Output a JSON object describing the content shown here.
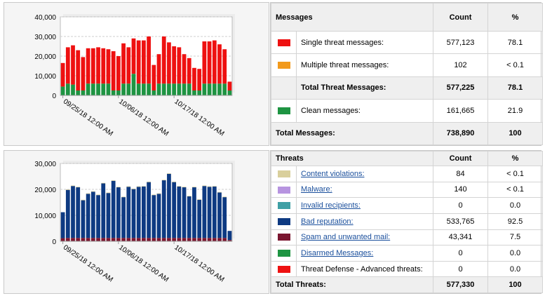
{
  "messages_table": {
    "col_label": "Messages",
    "col_count": "Count",
    "col_pct": "%",
    "rows": [
      {
        "label": "Single threat messages:",
        "count": "577,123",
        "pct": "78.1",
        "color": "#ee1111"
      },
      {
        "label": "Multiple threat messages:",
        "count": "102",
        "pct": "< 0.1",
        "color": "#f29a1c"
      }
    ],
    "total_threat": {
      "label": "Total Threat Messages:",
      "count": "577,225",
      "pct": "78.1"
    },
    "clean": {
      "label": "Clean messages:",
      "count": "161,665",
      "pct": "21.9",
      "color": "#1e9442"
    },
    "total": {
      "label": "Total Messages:",
      "count": "738,890",
      "pct": "100"
    }
  },
  "threats_table": {
    "col_label": "Threats",
    "col_count": "Count",
    "col_pct": "%",
    "rows": [
      {
        "label": "Content violations:",
        "count": "84",
        "pct": "< 0.1",
        "color": "#d9cf9c",
        "link": true
      },
      {
        "label": "Malware:",
        "count": "140",
        "pct": "< 0.1",
        "color": "#b794e0",
        "link": true
      },
      {
        "label": "Invalid recipients:",
        "count": "0",
        "pct": "0.0",
        "color": "#3fa0a5",
        "link": true
      },
      {
        "label": "Bad reputation:",
        "count": "533,765",
        "pct": "92.5",
        "color": "#0e3a82",
        "link": true
      },
      {
        "label": "Spam and unwanted mail:",
        "count": "43,341",
        "pct": "7.5",
        "color": "#7a1630",
        "link": true
      },
      {
        "label": "Disarmed Messages:",
        "count": "0",
        "pct": "0.0",
        "color": "#1e9442",
        "link": true
      },
      {
        "label": "Threat Defense - Advanced threats:",
        "count": "0",
        "pct": "0.0",
        "color": "#ee1111",
        "link": false
      }
    ],
    "total": {
      "label": "Total Threats:",
      "count": "577,330",
      "pct": "100"
    }
  },
  "chart_data": [
    {
      "type": "bar",
      "stacked": true,
      "ylim": [
        0,
        40000
      ],
      "y_ticks": [
        "0",
        "10,000",
        "20,000",
        "30,000",
        "40,000"
      ],
      "x_ticks": [
        "09/25/18 12:00 AM",
        "10/06/18 12:00 AM",
        "10/17/18 12:00 AM"
      ],
      "grid": true,
      "series": [
        {
          "name": "Clean messages",
          "color": "#1e9442",
          "values": [
            4500,
            6000,
            5500,
            2500,
            2500,
            6000,
            6000,
            6000,
            6000,
            6000,
            2500,
            2500,
            6000,
            6000,
            11000,
            6000,
            6000,
            6000,
            2500,
            6000,
            6000,
            6000,
            6000,
            6000,
            6000,
            6000,
            2500,
            2500,
            6000,
            6000,
            6000,
            6000,
            6000,
            2500
          ]
        },
        {
          "name": "Threat messages",
          "color": "#ee1111",
          "values": [
            12000,
            18500,
            20000,
            20500,
            17000,
            18000,
            18000,
            18500,
            18000,
            17500,
            20000,
            17500,
            20500,
            18500,
            18000,
            22000,
            22000,
            24000,
            13000,
            15000,
            24000,
            21000,
            19000,
            18500,
            15000,
            13000,
            11500,
            11000,
            21500,
            21500,
            22000,
            20000,
            17500,
            4500
          ]
        }
      ]
    },
    {
      "type": "bar",
      "stacked": true,
      "ylim": [
        0,
        30000
      ],
      "y_ticks": [
        "0",
        "10,000",
        "20,000",
        "30,000"
      ],
      "x_ticks": [
        "09/25/18 12:00 AM",
        "10/06/18 12:00 AM",
        "10/17/18 12:00 AM"
      ],
      "grid": true,
      "series": [
        {
          "name": "Spam and unwanted mail",
          "color": "#7a1630",
          "values": [
            1200,
            1300,
            1300,
            1300,
            1300,
            1300,
            1300,
            1300,
            1300,
            1300,
            1300,
            1300,
            1300,
            1300,
            1300,
            1300,
            1300,
            1300,
            1300,
            1300,
            1300,
            1300,
            1300,
            1300,
            1300,
            1300,
            1300,
            1300,
            1300,
            1300,
            1300,
            1300,
            1300,
            500
          ]
        },
        {
          "name": "Bad reputation",
          "color": "#0e3a82",
          "values": [
            10000,
            18500,
            20000,
            19500,
            14500,
            17000,
            17800,
            16500,
            21000,
            17300,
            22000,
            19500,
            15700,
            19700,
            18800,
            19700,
            19800,
            21500,
            16500,
            17000,
            22200,
            24700,
            21500,
            19800,
            19500,
            16000,
            19500,
            14700,
            20000,
            19700,
            19800,
            17500,
            15700,
            3500
          ]
        },
        {
          "name": "Content violations",
          "color": "#d9cf9c",
          "values": [
            0,
            200,
            200,
            200,
            200,
            200,
            200,
            200,
            200,
            200,
            200,
            200,
            200,
            200,
            200,
            200,
            200,
            200,
            200,
            200,
            200,
            200,
            200,
            200,
            200,
            200,
            200,
            200,
            200,
            200,
            200,
            200,
            200,
            0
          ]
        }
      ]
    }
  ]
}
